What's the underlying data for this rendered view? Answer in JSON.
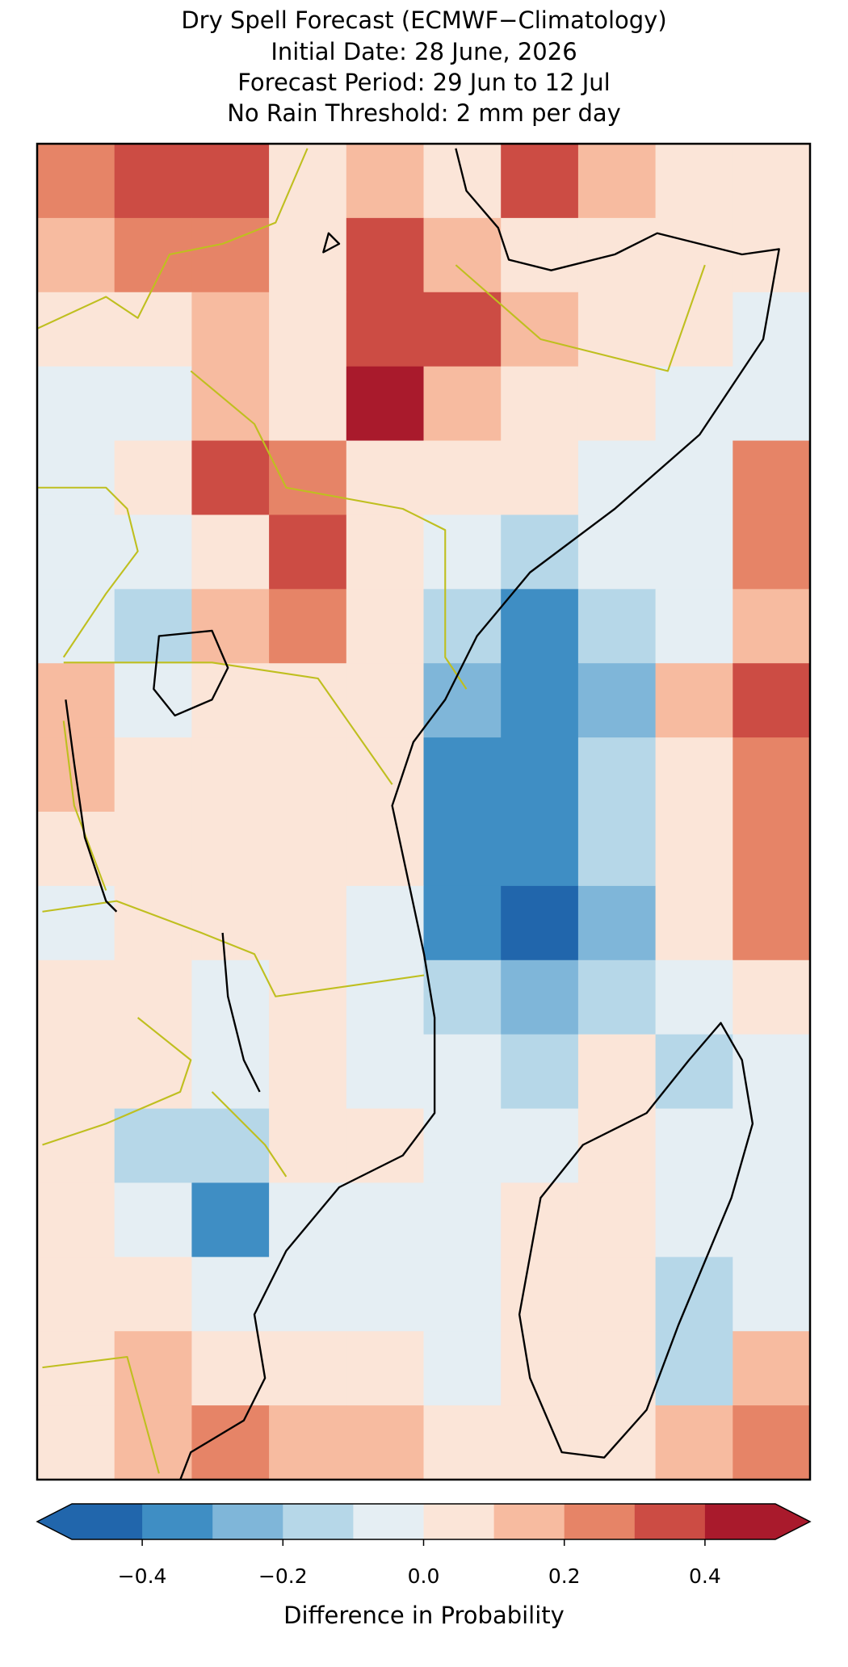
{
  "chart_data": {
    "type": "heatmap",
    "title": [
      "Dry Spell Forecast (ECMWF−Climatology)",
      "Initial Date: 28 June, 2026",
      "Forecast Period: 29 Jun to 12 Jul",
      "No Rain Threshold: 2 mm per day"
    ],
    "values": [
      [
        0.25,
        0.35,
        0.35,
        0.05,
        0.15,
        0.05,
        0.35,
        0.15,
        0.05,
        0.05
      ],
      [
        0.15,
        0.25,
        0.25,
        0.05,
        0.35,
        0.15,
        0.05,
        0.05,
        0.05,
        0.05
      ],
      [
        0.05,
        0.05,
        0.15,
        0.05,
        0.35,
        0.35,
        0.15,
        0.05,
        0.05,
        -0.05
      ],
      [
        -0.05,
        -0.05,
        0.15,
        0.05,
        0.45,
        0.15,
        0.05,
        0.05,
        -0.05,
        -0.05
      ],
      [
        -0.05,
        0.05,
        0.35,
        0.25,
        0.05,
        0.05,
        0.05,
        -0.05,
        -0.05,
        0.25
      ],
      [
        -0.05,
        -0.05,
        0.05,
        0.35,
        0.05,
        -0.05,
        -0.15,
        -0.05,
        -0.05,
        0.25
      ],
      [
        -0.05,
        -0.15,
        0.15,
        0.25,
        0.05,
        -0.15,
        -0.35,
        -0.15,
        -0.05,
        0.15
      ],
      [
        0.15,
        -0.05,
        0.05,
        0.05,
        0.05,
        -0.25,
        -0.35,
        -0.25,
        0.15,
        0.35
      ],
      [
        0.15,
        0.05,
        0.05,
        0.05,
        0.05,
        -0.35,
        -0.35,
        -0.15,
        0.05,
        0.25
      ],
      [
        0.05,
        0.05,
        0.05,
        0.05,
        0.05,
        -0.35,
        -0.35,
        -0.15,
        0.05,
        0.25
      ],
      [
        -0.05,
        0.05,
        0.05,
        0.05,
        -0.05,
        -0.35,
        -0.45,
        -0.25,
        0.05,
        0.25
      ],
      [
        0.05,
        0.05,
        -0.05,
        0.05,
        -0.05,
        -0.15,
        -0.25,
        -0.15,
        -0.05,
        0.05
      ],
      [
        0.05,
        0.05,
        -0.05,
        0.05,
        -0.05,
        -0.05,
        -0.15,
        0.05,
        -0.15,
        -0.05
      ],
      [
        0.05,
        -0.15,
        -0.15,
        0.05,
        0.05,
        -0.05,
        -0.05,
        0.05,
        -0.05,
        -0.05
      ],
      [
        0.05,
        -0.05,
        -0.35,
        -0.05,
        -0.05,
        -0.05,
        0.05,
        0.05,
        -0.05,
        -0.05
      ],
      [
        0.05,
        0.05,
        -0.05,
        -0.05,
        -0.05,
        -0.05,
        0.05,
        0.05,
        -0.15,
        -0.05
      ],
      [
        0.05,
        0.15,
        0.05,
        0.05,
        0.05,
        -0.05,
        0.05,
        0.05,
        -0.15,
        0.15
      ],
      [
        0.05,
        0.15,
        0.25,
        0.15,
        0.15,
        0.05,
        0.05,
        0.05,
        0.15,
        0.25
      ]
    ],
    "colorbar": {
      "bounds": [
        -0.5,
        -0.4,
        -0.3,
        -0.2,
        -0.1,
        0.0,
        0.1,
        0.2,
        0.3,
        0.4,
        0.5
      ],
      "colors": [
        "#2166ac",
        "#3f8ec4",
        "#7fb6d9",
        "#b6d7e8",
        "#e5eef3",
        "#fbe5d8",
        "#f7bba0",
        "#e68467",
        "#cc4c44",
        "#a91a2c"
      ],
      "extend": "both",
      "ticks": [
        {
          "value": -0.4,
          "label": "−0.4"
        },
        {
          "value": -0.2,
          "label": "−0.2"
        },
        {
          "value": 0.0,
          "label": "0.0"
        },
        0.2,
        0.4
      ],
      "label": "Difference in Probability"
    }
  }
}
